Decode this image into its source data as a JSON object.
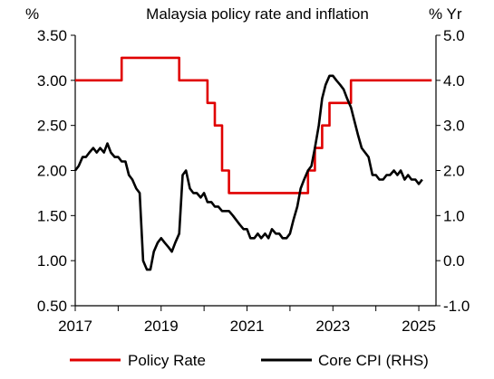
{
  "chart_data": {
    "type": "line",
    "title": "Malaysia policy rate and inflation",
    "left_unit": "%",
    "right_unit": "% Yr",
    "x_ticks": [
      "2017",
      "2019",
      "2021",
      "2023",
      "2025"
    ],
    "x_range": [
      2017.0,
      2025.4
    ],
    "y_left": {
      "range": [
        0.5,
        3.5
      ],
      "ticks": [
        "0.50",
        "1.00",
        "1.50",
        "2.00",
        "2.50",
        "3.00",
        "3.50"
      ]
    },
    "y_right": {
      "range": [
        -1.0,
        5.0
      ],
      "ticks": [
        "-1.0",
        "0.0",
        "1.0",
        "2.0",
        "3.0",
        "4.0",
        "5.0"
      ]
    },
    "legend_position": "bottom",
    "grid": false,
    "series": [
      {
        "name": "Policy Rate",
        "axis": "left",
        "color": "#e00000",
        "step": true,
        "points": [
          [
            2017.0,
            3.0
          ],
          [
            2018.08,
            3.25
          ],
          [
            2019.42,
            3.0
          ],
          [
            2020.08,
            2.75
          ],
          [
            2020.25,
            2.5
          ],
          [
            2020.42,
            2.0
          ],
          [
            2020.58,
            1.75
          ],
          [
            2022.42,
            2.0
          ],
          [
            2022.58,
            2.25
          ],
          [
            2022.75,
            2.5
          ],
          [
            2022.92,
            2.75
          ],
          [
            2023.42,
            3.0
          ],
          [
            2025.3,
            3.0
          ]
        ]
      },
      {
        "name": "Core CPI (RHS)",
        "axis": "right",
        "color": "#000000",
        "step": false,
        "points": [
          [
            2017.0,
            2.0
          ],
          [
            2017.08,
            2.1
          ],
          [
            2017.17,
            2.3
          ],
          [
            2017.25,
            2.3
          ],
          [
            2017.33,
            2.4
          ],
          [
            2017.42,
            2.5
          ],
          [
            2017.5,
            2.4
          ],
          [
            2017.58,
            2.5
          ],
          [
            2017.67,
            2.4
          ],
          [
            2017.75,
            2.6
          ],
          [
            2017.83,
            2.4
          ],
          [
            2017.92,
            2.3
          ],
          [
            2018.0,
            2.3
          ],
          [
            2018.08,
            2.2
          ],
          [
            2018.17,
            2.2
          ],
          [
            2018.25,
            1.9
          ],
          [
            2018.33,
            1.8
          ],
          [
            2018.42,
            1.6
          ],
          [
            2018.5,
            1.5
          ],
          [
            2018.58,
            0.0
          ],
          [
            2018.67,
            -0.2
          ],
          [
            2018.75,
            -0.2
          ],
          [
            2018.83,
            0.2
          ],
          [
            2018.92,
            0.4
          ],
          [
            2019.0,
            0.5
          ],
          [
            2019.08,
            0.4
          ],
          [
            2019.17,
            0.3
          ],
          [
            2019.25,
            0.2
          ],
          [
            2019.33,
            0.4
          ],
          [
            2019.42,
            0.6
          ],
          [
            2019.5,
            1.9
          ],
          [
            2019.58,
            2.0
          ],
          [
            2019.67,
            1.6
          ],
          [
            2019.75,
            1.5
          ],
          [
            2019.83,
            1.5
          ],
          [
            2019.92,
            1.4
          ],
          [
            2020.0,
            1.5
          ],
          [
            2020.08,
            1.3
          ],
          [
            2020.17,
            1.3
          ],
          [
            2020.25,
            1.2
          ],
          [
            2020.33,
            1.2
          ],
          [
            2020.42,
            1.1
          ],
          [
            2020.5,
            1.1
          ],
          [
            2020.58,
            1.1
          ],
          [
            2020.67,
            1.0
          ],
          [
            2020.75,
            0.9
          ],
          [
            2020.83,
            0.8
          ],
          [
            2020.92,
            0.7
          ],
          [
            2021.0,
            0.7
          ],
          [
            2021.08,
            0.5
          ],
          [
            2021.17,
            0.5
          ],
          [
            2021.25,
            0.6
          ],
          [
            2021.33,
            0.5
          ],
          [
            2021.42,
            0.6
          ],
          [
            2021.5,
            0.5
          ],
          [
            2021.58,
            0.7
          ],
          [
            2021.67,
            0.6
          ],
          [
            2021.75,
            0.6
          ],
          [
            2021.83,
            0.5
          ],
          [
            2021.92,
            0.5
          ],
          [
            2022.0,
            0.6
          ],
          [
            2022.08,
            0.9
          ],
          [
            2022.17,
            1.2
          ],
          [
            2022.25,
            1.6
          ],
          [
            2022.33,
            1.8
          ],
          [
            2022.42,
            2.0
          ],
          [
            2022.5,
            2.1
          ],
          [
            2022.58,
            2.5
          ],
          [
            2022.67,
            3.0
          ],
          [
            2022.75,
            3.6
          ],
          [
            2022.83,
            3.9
          ],
          [
            2022.92,
            4.1
          ],
          [
            2023.0,
            4.1
          ],
          [
            2023.08,
            4.0
          ],
          [
            2023.17,
            3.9
          ],
          [
            2023.25,
            3.8
          ],
          [
            2023.33,
            3.6
          ],
          [
            2023.42,
            3.4
          ],
          [
            2023.5,
            3.1
          ],
          [
            2023.58,
            2.8
          ],
          [
            2023.67,
            2.5
          ],
          [
            2023.75,
            2.4
          ],
          [
            2023.83,
            2.3
          ],
          [
            2023.92,
            1.9
          ],
          [
            2024.0,
            1.9
          ],
          [
            2024.08,
            1.8
          ],
          [
            2024.17,
            1.8
          ],
          [
            2024.25,
            1.9
          ],
          [
            2024.33,
            1.9
          ],
          [
            2024.42,
            2.0
          ],
          [
            2024.5,
            1.9
          ],
          [
            2024.58,
            2.0
          ],
          [
            2024.67,
            1.8
          ],
          [
            2024.75,
            1.9
          ],
          [
            2024.83,
            1.8
          ],
          [
            2024.92,
            1.8
          ],
          [
            2025.0,
            1.7
          ],
          [
            2025.08,
            1.8
          ]
        ]
      }
    ]
  }
}
